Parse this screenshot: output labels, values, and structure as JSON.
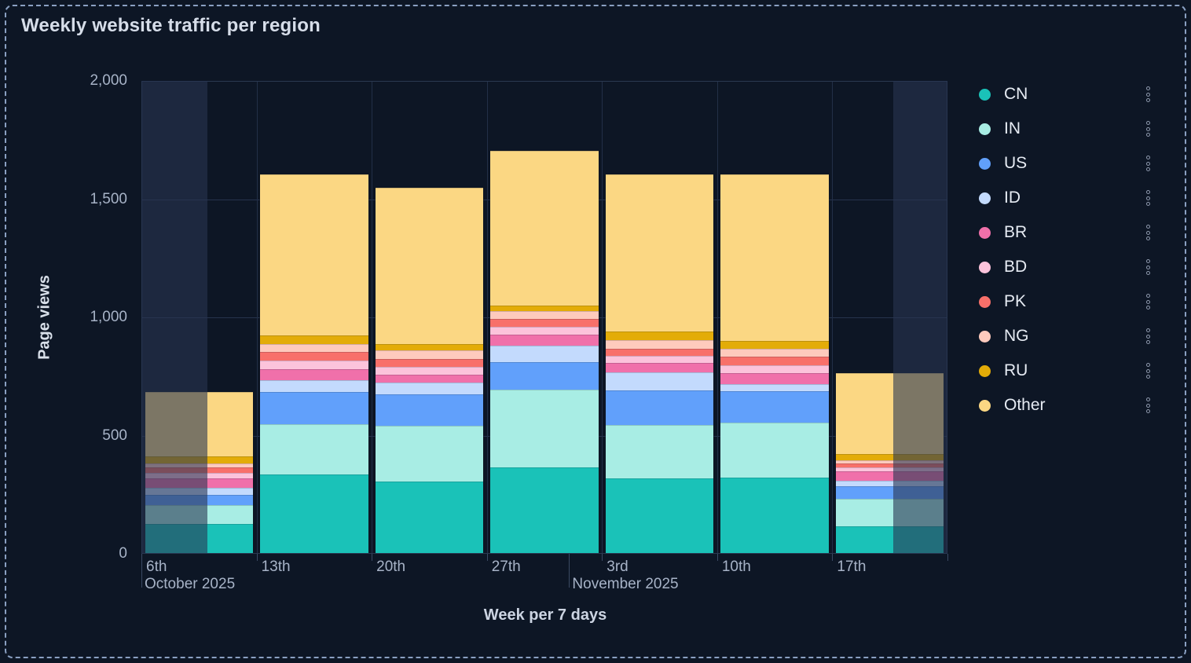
{
  "title": "Weekly website traffic per region",
  "chart_data": {
    "type": "bar",
    "stacked": true,
    "title": "Weekly website traffic per region",
    "xlabel": "Week per 7 days",
    "ylabel": "Page views",
    "ylim": [
      0,
      2000
    ],
    "grid": true,
    "legend_position": "right",
    "y_ticks": [
      {
        "value": 0,
        "label": "0"
      },
      {
        "value": 500,
        "label": "500"
      },
      {
        "value": 1000,
        "label": "1,000"
      },
      {
        "value": 1500,
        "label": "1,500"
      },
      {
        "value": 2000,
        "label": "2,000"
      }
    ],
    "categories": [
      "6th",
      "13th",
      "20th",
      "27th",
      "3rd",
      "10th",
      "17th"
    ],
    "month_labels": [
      {
        "text": "October 2025",
        "at_category_index": 0
      },
      {
        "text": "November 2025",
        "at_category_index": 4
      }
    ],
    "series": [
      {
        "name": "CN",
        "color": "#1AC2B8",
        "values": [
          125,
          335,
          305,
          365,
          316,
          321,
          113
        ]
      },
      {
        "name": "IN",
        "color": "#A8EDE4",
        "values": [
          80,
          213,
          234,
          329,
          229,
          233,
          117
        ]
      },
      {
        "name": "US",
        "color": "#61A0FB",
        "values": [
          42,
          136,
          136,
          117,
          147,
          132,
          56
        ]
      },
      {
        "name": "ID",
        "color": "#C3DAFD",
        "values": [
          33,
          50,
          48,
          69,
          74,
          31,
          22
        ]
      },
      {
        "name": "BR",
        "color": "#F070AA",
        "values": [
          39,
          46,
          33,
          47,
          42,
          46,
          41
        ]
      },
      {
        "name": "BD",
        "color": "#FCC3DB",
        "values": [
          22,
          37,
          34,
          33,
          28,
          34,
          16
        ]
      },
      {
        "name": "PK",
        "color": "#F8706A",
        "values": [
          23,
          38,
          35,
          33,
          30,
          37,
          17
        ]
      },
      {
        "name": "NG",
        "color": "#FECABD",
        "values": [
          20,
          34,
          36,
          34,
          37,
          34,
          15
        ]
      },
      {
        "name": "RU",
        "color": "#E3AC08",
        "values": [
          29,
          36,
          25,
          23,
          38,
          32,
          24
        ]
      },
      {
        "name": "Other",
        "color": "#FBD783",
        "values": [
          275,
          684,
          665,
          658,
          668,
          709,
          346
        ]
      }
    ],
    "faded": {
      "first_week_fraction": 0.57,
      "last_week_fraction": 0.47
    },
    "legend_menu_icon": "kebab-menu-icon"
  },
  "colors": {
    "background": "#0D1625",
    "frame_border": "#8AA0C2",
    "plot_border": "#2A3850",
    "gridline": "#26334D",
    "tick_text": "#A7B3C7",
    "axis_title_text": "#D2DAE7",
    "title_text": "#D6DDE9",
    "legend_text": "#E6EBF3",
    "fade_overlay": "rgba(40,54,82,0.6)"
  }
}
